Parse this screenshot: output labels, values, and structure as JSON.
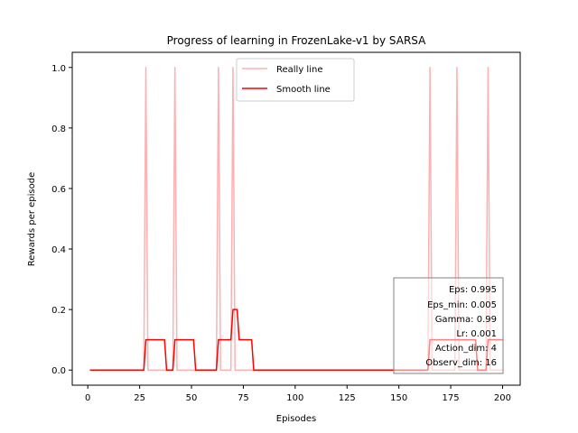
{
  "chart_data": {
    "type": "line",
    "title": "Progress of learning in FrozenLake-v1 by SARSA",
    "xlabel": "Episodes",
    "ylabel": "Rewards per episode",
    "xlim": [
      -7.5,
      208.5
    ],
    "ylim": [
      -0.05,
      1.05
    ],
    "xticks": [
      0,
      25,
      50,
      75,
      100,
      125,
      150,
      175,
      200
    ],
    "yticks": [
      0.0,
      0.2,
      0.4,
      0.6,
      0.8,
      1.0
    ],
    "xtick_labels": [
      "0",
      "25",
      "50",
      "75",
      "100",
      "125",
      "150",
      "175",
      "200"
    ],
    "ytick_labels": [
      "0.0",
      "0.2",
      "0.4",
      "0.6",
      "0.8",
      "1.0"
    ],
    "grid": false,
    "legend_position": "top-center",
    "series": [
      {
        "name": "Really line",
        "color": "#ffb0b0",
        "x": [
          1,
          27,
          28,
          29,
          41,
          42,
          43,
          62,
          63,
          64,
          69,
          70,
          71,
          164,
          165,
          166,
          177,
          178,
          179,
          192,
          193,
          194,
          200
        ],
        "values": [
          0,
          0,
          1,
          0,
          0,
          1,
          0,
          0,
          1,
          0,
          0,
          1,
          0,
          0,
          1,
          0,
          0,
          1,
          0,
          0,
          1,
          0,
          0
        ]
      },
      {
        "name": "Smooth line",
        "color": "#ff0000",
        "x": [
          1,
          27,
          28,
          37,
          38,
          41,
          42,
          51,
          52,
          62,
          63,
          69,
          70,
          72,
          73,
          79,
          80,
          164,
          165,
          177,
          178,
          187,
          188,
          192,
          193,
          200
        ],
        "values": [
          0,
          0,
          0.1,
          0.1,
          0,
          0,
          0.1,
          0.1,
          0,
          0,
          0.1,
          0.1,
          0.2,
          0.2,
          0.1,
          0.1,
          0,
          0,
          0.1,
          0.1,
          0.1,
          0.1,
          0,
          0,
          0.1,
          0.1
        ]
      }
    ],
    "info_box": {
      "position": "bottom-right",
      "lines": [
        "Eps: 0.995",
        "Eps_min: 0.005",
        "Gamma: 0.99",
        "Lr: 0.001",
        "Action_dim: 4",
        "Observ_dim: 16"
      ]
    }
  }
}
